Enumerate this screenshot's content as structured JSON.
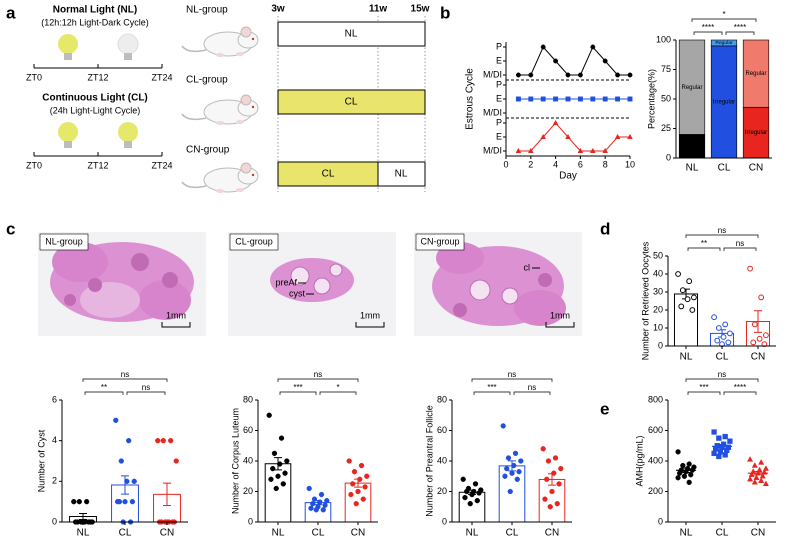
{
  "panel_labels": [
    "a",
    "b",
    "c",
    "d",
    "e"
  ],
  "panel_a": {
    "normal_light": {
      "title": "Normal Light (NL)",
      "subtitle": "(12h:12h Light-Dark Cycle)",
      "ticks": [
        "ZT0",
        "ZT12",
        "ZT24"
      ]
    },
    "continuous_light": {
      "title": "Continuous Light (CL)",
      "subtitle": "(24h Light-Light Cycle)",
      "ticks": [
        "ZT0",
        "ZT12",
        "ZT24"
      ]
    },
    "weeks": [
      "3w",
      "11w",
      "15w"
    ],
    "groups": [
      {
        "name": "NL-group",
        "segments": [
          "NL"
        ]
      },
      {
        "name": "CL-group",
        "segments": [
          "CL"
        ]
      },
      {
        "name": "CN-group",
        "segments": [
          "CL",
          "NL"
        ]
      }
    ]
  },
  "histology": [
    {
      "label": "NL-group",
      "scale": "1mm"
    },
    {
      "label": "CL-group",
      "scale": "1mm",
      "annotations": [
        "preAf",
        "cyst"
      ]
    },
    {
      "label": "CN-group",
      "scale": "1mm",
      "annotations": [
        "cl"
      ]
    }
  ],
  "chart_data": [
    {
      "type": "line",
      "xlabel": "Day",
      "ylabel": "Estrous Cycle",
      "x": [
        1,
        2,
        3,
        4,
        5,
        6,
        7,
        8,
        9,
        10
      ],
      "xlim": [
        0,
        10
      ],
      "xticks": [
        0,
        2,
        4,
        6,
        8,
        10
      ],
      "ylim": [
        0,
        2
      ],
      "yticks": [
        {
          "value": 2,
          "label": "P"
        },
        {
          "value": 1,
          "label": "E"
        },
        {
          "value": 0,
          "label": "M/DI"
        }
      ],
      "series": [
        {
          "color": "#000000",
          "marker": "circle",
          "values": [
            0,
            0,
            2,
            1,
            0,
            0,
            2,
            1,
            0,
            0
          ]
        },
        {
          "color": "#2150e0",
          "marker": "square",
          "values": [
            1,
            1,
            1,
            1,
            1,
            1,
            1,
            1,
            1,
            1
          ]
        },
        {
          "color": "#e8251f",
          "marker": "triangle",
          "values": [
            0,
            0,
            1,
            2,
            1,
            0,
            0,
            0,
            1,
            1
          ]
        }
      ]
    },
    {
      "type": "stacked_bar",
      "ylabel": "Percentage(%)",
      "categories": [
        "NL",
        "CL",
        "CN"
      ],
      "ylim": [
        0,
        100
      ],
      "yticks": [
        0,
        25,
        50,
        75,
        100
      ],
      "series": [
        {
          "name": "Irregular",
          "colors": [
            "#000000",
            "#2150e0",
            "#e8251f"
          ],
          "values": [
            20,
            95,
            43
          ]
        },
        {
          "name": "Regular",
          "colors": [
            "#a6a6a6",
            "#4a9be8",
            "#f07a6c"
          ],
          "values": [
            80,
            5,
            57
          ]
        }
      ],
      "comparisons": [
        {
          "from": "NL",
          "to": "CN",
          "label": "*"
        },
        {
          "from": "NL",
          "to": "CL",
          "label": "****"
        },
        {
          "from": "CL",
          "to": "CN",
          "label": "****"
        }
      ]
    },
    {
      "type": "dot_bar",
      "ylabel": "Number of Retrieved Oocytes",
      "categories": [
        "NL",
        "CL",
        "CN"
      ],
      "colors": [
        "#000000",
        "#2150e0",
        "#e8251f"
      ],
      "markers": [
        "circle",
        "circle",
        "circle"
      ],
      "hollow": true,
      "ylim": [
        0,
        50
      ],
      "yticks": [
        0,
        10,
        20,
        30,
        40,
        50
      ],
      "points": [
        [
          40,
          36,
          31,
          27,
          26,
          22,
          20
        ],
        [
          16,
          12,
          10,
          7,
          5,
          3,
          2,
          1
        ],
        [
          43,
          27,
          12,
          6,
          4,
          2,
          1
        ]
      ],
      "means": [
        28.9,
        7,
        13.6
      ],
      "sems": [
        2.7,
        2,
        6
      ],
      "comparisons": [
        {
          "from": "NL",
          "to": "CN",
          "label": "ns"
        },
        {
          "from": "NL",
          "to": "CL",
          "label": "**"
        },
        {
          "from": "CL",
          "to": "CN",
          "label": "ns"
        }
      ]
    },
    {
      "type": "dot_bar",
      "ylabel": "Number of Cyst",
      "categories": [
        "NL",
        "CL",
        "CN"
      ],
      "colors": [
        "#000000",
        "#2150e0",
        "#e8251f"
      ],
      "markers": [
        "circle",
        "circle",
        "circle"
      ],
      "hollow": false,
      "ylim": [
        0,
        6
      ],
      "yticks": [
        0,
        2,
        4,
        6
      ],
      "points": [
        [
          1,
          1,
          1,
          0,
          0,
          0,
          0,
          0,
          0,
          0,
          0
        ],
        [
          5,
          4,
          3,
          2,
          2,
          1,
          1,
          1,
          1,
          0,
          0
        ],
        [
          4,
          4,
          4,
          3,
          0,
          0,
          0,
          0,
          0,
          0,
          0
        ]
      ],
      "means": [
        0.27,
        1.82,
        1.36
      ],
      "sems": [
        0.15,
        0.45,
        0.55
      ],
      "comparisons": [
        {
          "from": "NL",
          "to": "CN",
          "label": "ns"
        },
        {
          "from": "NL",
          "to": "CL",
          "label": "**"
        },
        {
          "from": "CL",
          "to": "CN",
          "label": "ns"
        }
      ]
    },
    {
      "type": "dot_bar",
      "ylabel": "Number of Corpus Luteum",
      "categories": [
        "NL",
        "CL",
        "CN"
      ],
      "colors": [
        "#000000",
        "#2150e0",
        "#e8251f"
      ],
      "markers": [
        "circle",
        "circle",
        "circle"
      ],
      "hollow": false,
      "ylim": [
        0,
        80
      ],
      "yticks": [
        0,
        20,
        40,
        60,
        80
      ],
      "points": [
        [
          70,
          55,
          45,
          40,
          38,
          35,
          32,
          30,
          28,
          25,
          22
        ],
        [
          22,
          18,
          15,
          14,
          13,
          12,
          11,
          10,
          9,
          8,
          8
        ],
        [
          40,
          37,
          33,
          30,
          28,
          25,
          23,
          20,
          18,
          15,
          12
        ]
      ],
      "means": [
        38.2,
        12.7,
        25.5
      ],
      "sems": [
        4,
        1.3,
        2.6
      ],
      "comparisons": [
        {
          "from": "NL",
          "to": "CN",
          "label": "ns"
        },
        {
          "from": "NL",
          "to": "CL",
          "label": "***"
        },
        {
          "from": "CL",
          "to": "CN",
          "label": "*"
        }
      ]
    },
    {
      "type": "dot_bar",
      "ylabel": "Number of Preantral Follicle",
      "categories": [
        "NL",
        "CL",
        "CN"
      ],
      "colors": [
        "#000000",
        "#2150e0",
        "#e8251f"
      ],
      "markers": [
        "circle",
        "circle",
        "circle"
      ],
      "hollow": false,
      "ylim": [
        0,
        80
      ],
      "yticks": [
        0,
        20,
        40,
        60,
        80
      ],
      "points": [
        [
          28,
          25,
          22,
          21,
          20,
          20,
          19,
          18,
          16,
          14,
          12
        ],
        [
          63,
          45,
          42,
          40,
          37,
          35,
          33,
          32,
          30,
          28,
          20
        ],
        [
          48,
          42,
          40,
          35,
          32,
          28,
          25,
          20,
          15,
          12,
          10
        ]
      ],
      "means": [
        19.5,
        36.8,
        27.9
      ],
      "sems": [
        1.4,
        3.3,
        3.7
      ],
      "comparisons": [
        {
          "from": "NL",
          "to": "CN",
          "label": "ns"
        },
        {
          "from": "NL",
          "to": "CL",
          "label": "***"
        },
        {
          "from": "CL",
          "to": "CN",
          "label": "ns"
        }
      ]
    },
    {
      "type": "dot_mean",
      "ylabel": "AMH(pg/mL)",
      "categories": [
        "NL",
        "CL",
        "CN"
      ],
      "colors": [
        "#000000",
        "#2150e0",
        "#e8251f"
      ],
      "markers": [
        "circle",
        "square",
        "triangle"
      ],
      "hollow": false,
      "ylim": [
        0,
        800
      ],
      "yticks": [
        0,
        200,
        400,
        600,
        800
      ],
      "points": [
        [
          460,
          380,
          370,
          360,
          350,
          340,
          340,
          330,
          320,
          310,
          300,
          290,
          260
        ],
        [
          590,
          560,
          550,
          530,
          510,
          500,
          490,
          490,
          480,
          470,
          460,
          450,
          440,
          430
        ],
        [
          410,
          390,
          370,
          350,
          340,
          330,
          325,
          320,
          310,
          300,
          290,
          280,
          270,
          260,
          250
        ]
      ],
      "means": [
        339,
        496,
        320
      ],
      "sems": [
        14,
        12,
        11
      ],
      "comparisons": [
        {
          "from": "NL",
          "to": "CN",
          "label": "ns"
        },
        {
          "from": "NL",
          "to": "CL",
          "label": "***"
        },
        {
          "from": "CL",
          "to": "CN",
          "label": "****"
        }
      ]
    }
  ]
}
